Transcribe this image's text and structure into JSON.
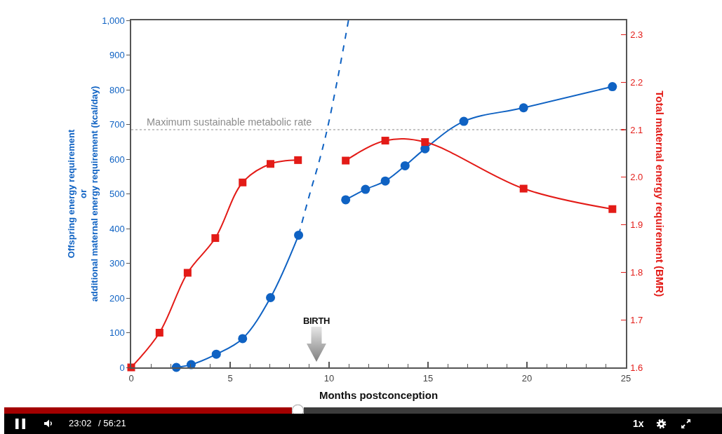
{
  "chart_data": {
    "type": "line",
    "xlabel": "Months postconception",
    "ylabel": "Offspring energy requirement\nor\nadditional maternal energy requirement (kcal/day)",
    "y2label": "Total maternal energy requirement (BMR)",
    "xlim": [
      0,
      25
    ],
    "xticks": [
      0,
      {
        "value": 1,
        "label": null
      },
      {
        "value": 2,
        "label": null
      },
      {
        "value": 3,
        "label": null
      },
      {
        "value": 4,
        "label": null
      },
      5,
      {
        "value": 6,
        "label": null
      },
      {
        "value": 7,
        "label": null
      },
      {
        "value": 8,
        "label": null
      },
      {
        "value": 9,
        "label": null
      },
      10,
      {
        "value": 11,
        "label": null
      },
      {
        "value": 12,
        "label": null
      },
      {
        "value": 13,
        "label": null
      },
      {
        "value": 14,
        "label": null
      },
      15,
      {
        "value": 16,
        "label": null
      },
      {
        "value": 17,
        "label": null
      },
      {
        "value": 18,
        "label": null
      },
      {
        "value": 19,
        "label": null
      },
      20,
      {
        "value": 21,
        "label": null
      },
      {
        "value": 22,
        "label": null
      },
      {
        "value": 23,
        "label": null
      },
      {
        "value": 24,
        "label": null
      },
      25
    ],
    "ylim": [
      0,
      1000
    ],
    "yticks": [
      0,
      100,
      200,
      300,
      400,
      500,
      600,
      700,
      800,
      900,
      {
        "value": 1000,
        "label": "1,000"
      }
    ],
    "y2lim": [
      1.6,
      2.33
    ],
    "y2ticks": [
      1.6,
      1.7,
      1.8,
      1.9,
      {
        "value": 2,
        "label": "2.0"
      },
      2.1,
      2.2,
      2.3
    ],
    "series": [
      {
        "color": "#0f62c3",
        "marker": "circle",
        "line_style": "solid",
        "x": [
          2.28,
          3.03,
          4.3,
          5.63,
          7.04,
          8.46
        ],
        "values": [
          0,
          8,
          38,
          83,
          201,
          381
        ]
      },
      {
        "color": "#0f62c3",
        "marker": "none",
        "line_style": "dashed",
        "x": [
          8.46,
          9.0,
          9.5,
          9.91,
          10.45,
          10.98
        ],
        "values": [
          381,
          495,
          594,
          687,
          837,
          1000
        ]
      },
      {
        "color": "#0f62c3",
        "marker": "circle",
        "line_style": "solid",
        "x": [
          10.84,
          11.84,
          12.84,
          13.84,
          14.85,
          16.81,
          19.83,
          24.32
        ],
        "values": [
          483,
          513,
          537,
          581,
          630,
          709,
          748,
          809
        ]
      },
      {
        "color": "#e31b17",
        "marker": "square",
        "line_style": "solid",
        "axis": "y2",
        "x": [
          0,
          1.43,
          2.85,
          4.25,
          5.63,
          7.04,
          8.43
        ],
        "values": [
          1.6,
          1.673,
          1.799,
          1.872,
          1.989,
          2.028,
          2.036
        ]
      },
      {
        "color": "#e31b17",
        "marker": "square",
        "line_style": "solid",
        "axis": "y2",
        "x": [
          10.84,
          12.84,
          14.85,
          19.83,
          24.32
        ],
        "values": [
          2.035,
          2.077,
          2.074,
          1.976,
          1.933
        ]
      }
    ],
    "ref_lines": [
      {
        "axis": "y2",
        "value": 2.1,
        "label": "Maximum sustainable metabolic rate",
        "color": "#8c8c8c",
        "line_style": "dotted"
      }
    ],
    "annotations": [
      "BIRTH",
      "23:02",
      "/ 56:21",
      "1x"
    ]
  }
}
